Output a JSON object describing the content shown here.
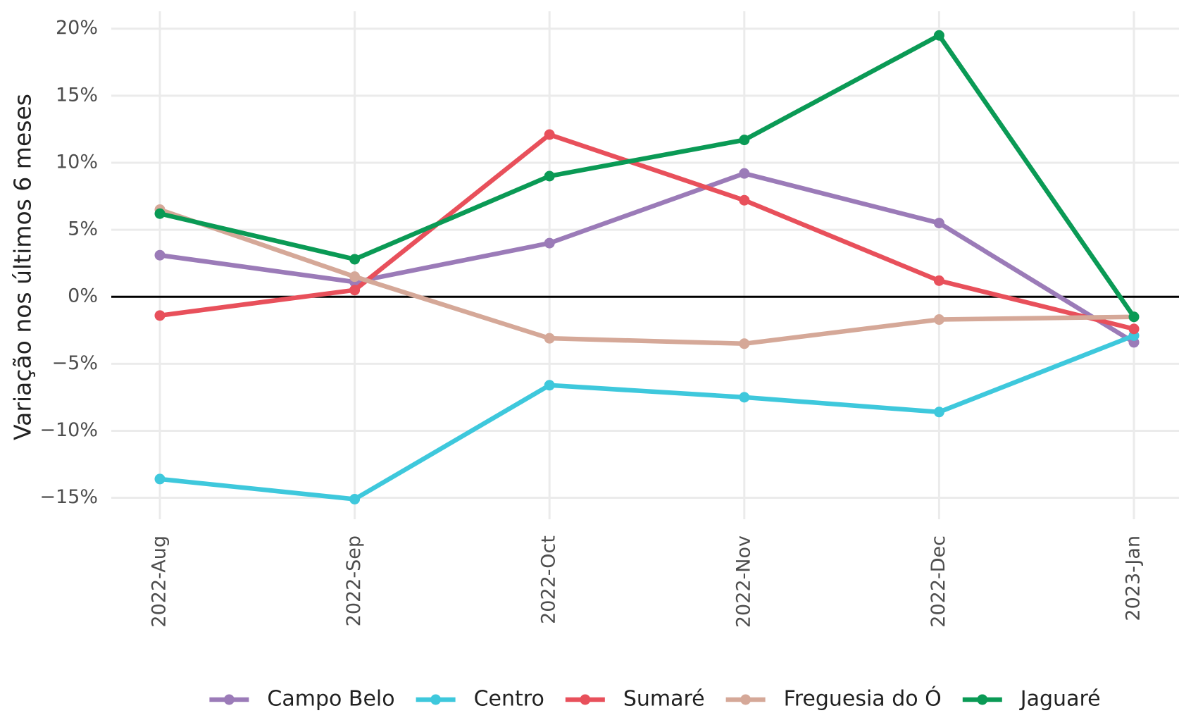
{
  "chart_data": {
    "type": "line",
    "y_label": "Variação nos últimos 6 meses",
    "categories": [
      "2022-Aug",
      "2022-Sep",
      "2022-Oct",
      "2022-Nov",
      "2022-Dec",
      "2023-Jan"
    ],
    "series": [
      {
        "name": "Campo Belo",
        "color": "#9b7bb8",
        "values": [
          3.1,
          1.1,
          4.0,
          9.2,
          5.5,
          -3.4
        ]
      },
      {
        "name": "Centro",
        "color": "#3ec8dc",
        "values": [
          -13.6,
          -15.1,
          -6.6,
          -7.5,
          -8.6,
          -2.9
        ]
      },
      {
        "name": "Sumaré",
        "color": "#e8505b",
        "values": [
          -1.4,
          0.5,
          12.1,
          7.2,
          1.2,
          -2.4
        ]
      },
      {
        "name": "Freguesia do Ó",
        "color": "#d5a898",
        "values": [
          6.5,
          1.5,
          -3.1,
          -3.5,
          -1.7,
          -1.5
        ]
      },
      {
        "name": "Jaguaré",
        "color": "#0a9a55",
        "values": [
          6.2,
          2.8,
          9.0,
          11.7,
          19.5,
          -1.5
        ]
      }
    ],
    "ylim": [
      -16.6,
      21.3
    ],
    "yticks": [
      {
        "value": -15,
        "label": "−15%"
      },
      {
        "value": -10,
        "label": "−10%"
      },
      {
        "value": -5,
        "label": "−5%"
      },
      {
        "value": 0,
        "label": "0%"
      },
      {
        "value": 5,
        "label": "5%"
      },
      {
        "value": 10,
        "label": "10%"
      },
      {
        "value": 15,
        "label": "15%"
      },
      {
        "value": 20,
        "label": "20%"
      }
    ],
    "grid": true,
    "zero_line": true,
    "legend": "bottom"
  }
}
